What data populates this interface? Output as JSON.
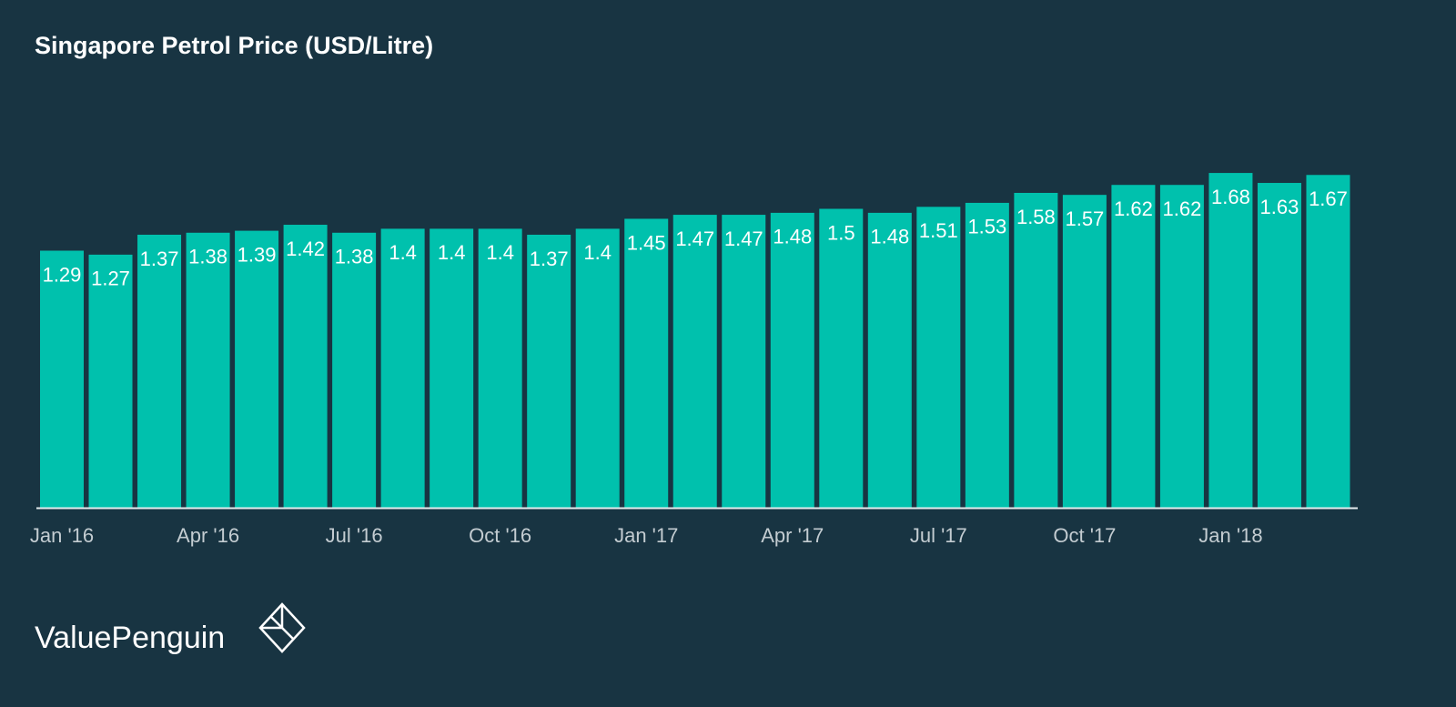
{
  "chart_data": {
    "type": "bar",
    "title": "Singapore Petrol Price (USD/Litre)",
    "categories": [
      "Jan '16",
      null,
      null,
      "Apr '16",
      null,
      null,
      "Jul '16",
      null,
      null,
      "Oct '16",
      null,
      null,
      "Jan '17",
      null,
      null,
      "Apr '17",
      null,
      null,
      "Jul '17",
      null,
      null,
      "Oct '17",
      null,
      null,
      "Jan '18",
      null,
      null
    ],
    "values": [
      1.29,
      1.27,
      1.37,
      1.38,
      1.39,
      1.42,
      1.38,
      1.4,
      1.4,
      1.4,
      1.37,
      1.4,
      1.45,
      1.47,
      1.47,
      1.48,
      1.5,
      1.48,
      1.51,
      1.53,
      1.58,
      1.57,
      1.62,
      1.62,
      1.68,
      1.63,
      1.67
    ],
    "color": "#00c1ad",
    "ylim": [
      0,
      2
    ],
    "brand": "ValuePenguin"
  }
}
